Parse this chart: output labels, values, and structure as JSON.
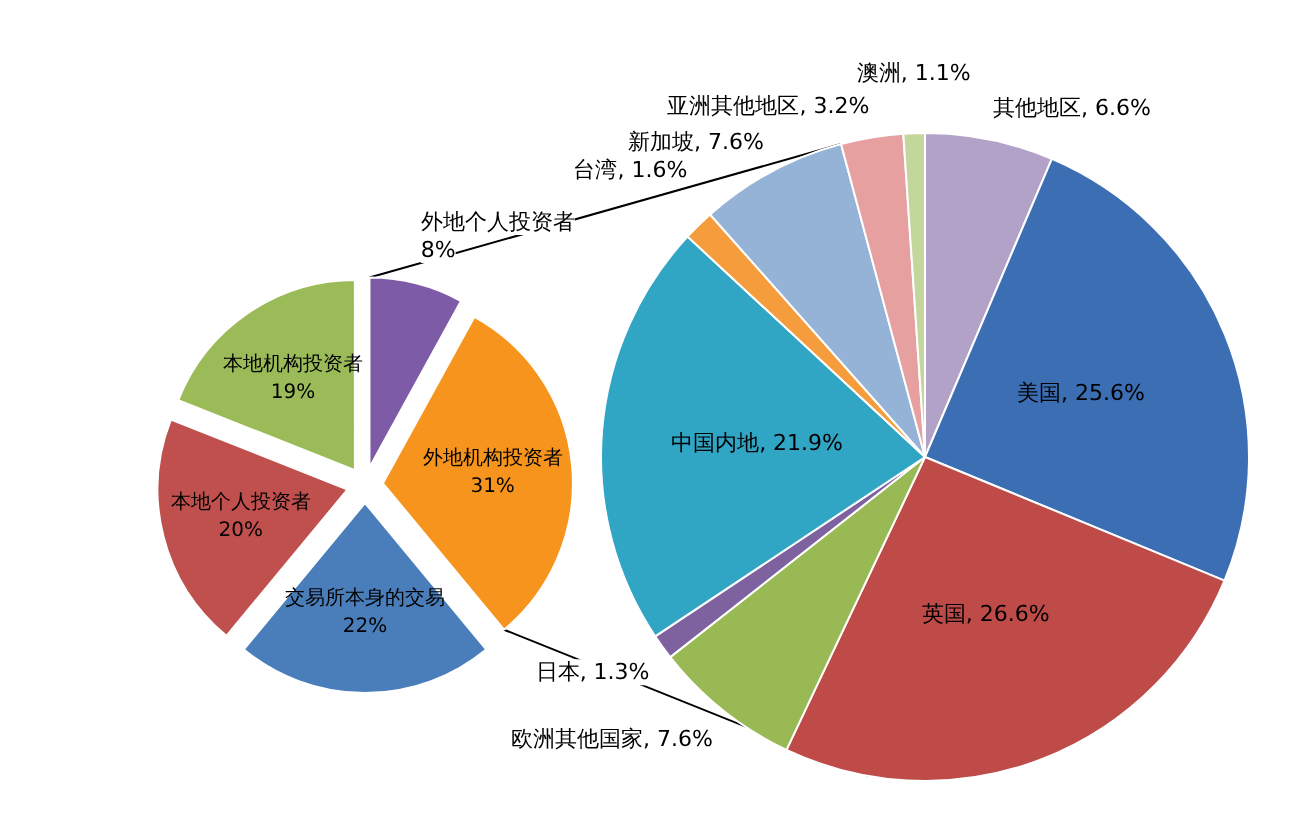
{
  "chart_data": [
    {
      "type": "pie",
      "categories": [
        "外地个人投资者",
        "外地机构投资者",
        "交易所本身的交易",
        "本地个人投资者",
        "本地机构投资者"
      ],
      "values": [
        8,
        31,
        22,
        20,
        19
      ],
      "colors": [
        "#7d5ba6",
        "#f7941d",
        "#4a7ebb",
        "#c0504d",
        "#9bbb59"
      ],
      "value_labels": [
        "8%",
        "31%",
        "22%",
        "20%",
        "19%"
      ]
    },
    {
      "type": "pie",
      "categories": [
        "其他地区",
        "美国",
        "英国",
        "欧洲其他国家",
        "日本",
        "中国内地",
        "台湾",
        "新加坡",
        "亚洲其他地区",
        "澳洲"
      ],
      "values": [
        6.6,
        25.6,
        26.6,
        7.6,
        1.3,
        21.9,
        1.6,
        7.6,
        3.2,
        1.1
      ],
      "colors": [
        "#b3a2c7",
        "#3c6eb4",
        "#be4b48",
        "#98b954",
        "#7e62a0",
        "#31a5c4",
        "#f59d3d",
        "#95b3d7",
        "#e6a0a0",
        "#c3d69b"
      ],
      "value_labels": [
        "6.6%",
        "25.6%",
        "26.6%",
        "7.6%",
        "1.3%",
        "21.9%",
        "1.6%",
        "7.6%",
        "3.2%",
        "1.1%"
      ]
    }
  ]
}
